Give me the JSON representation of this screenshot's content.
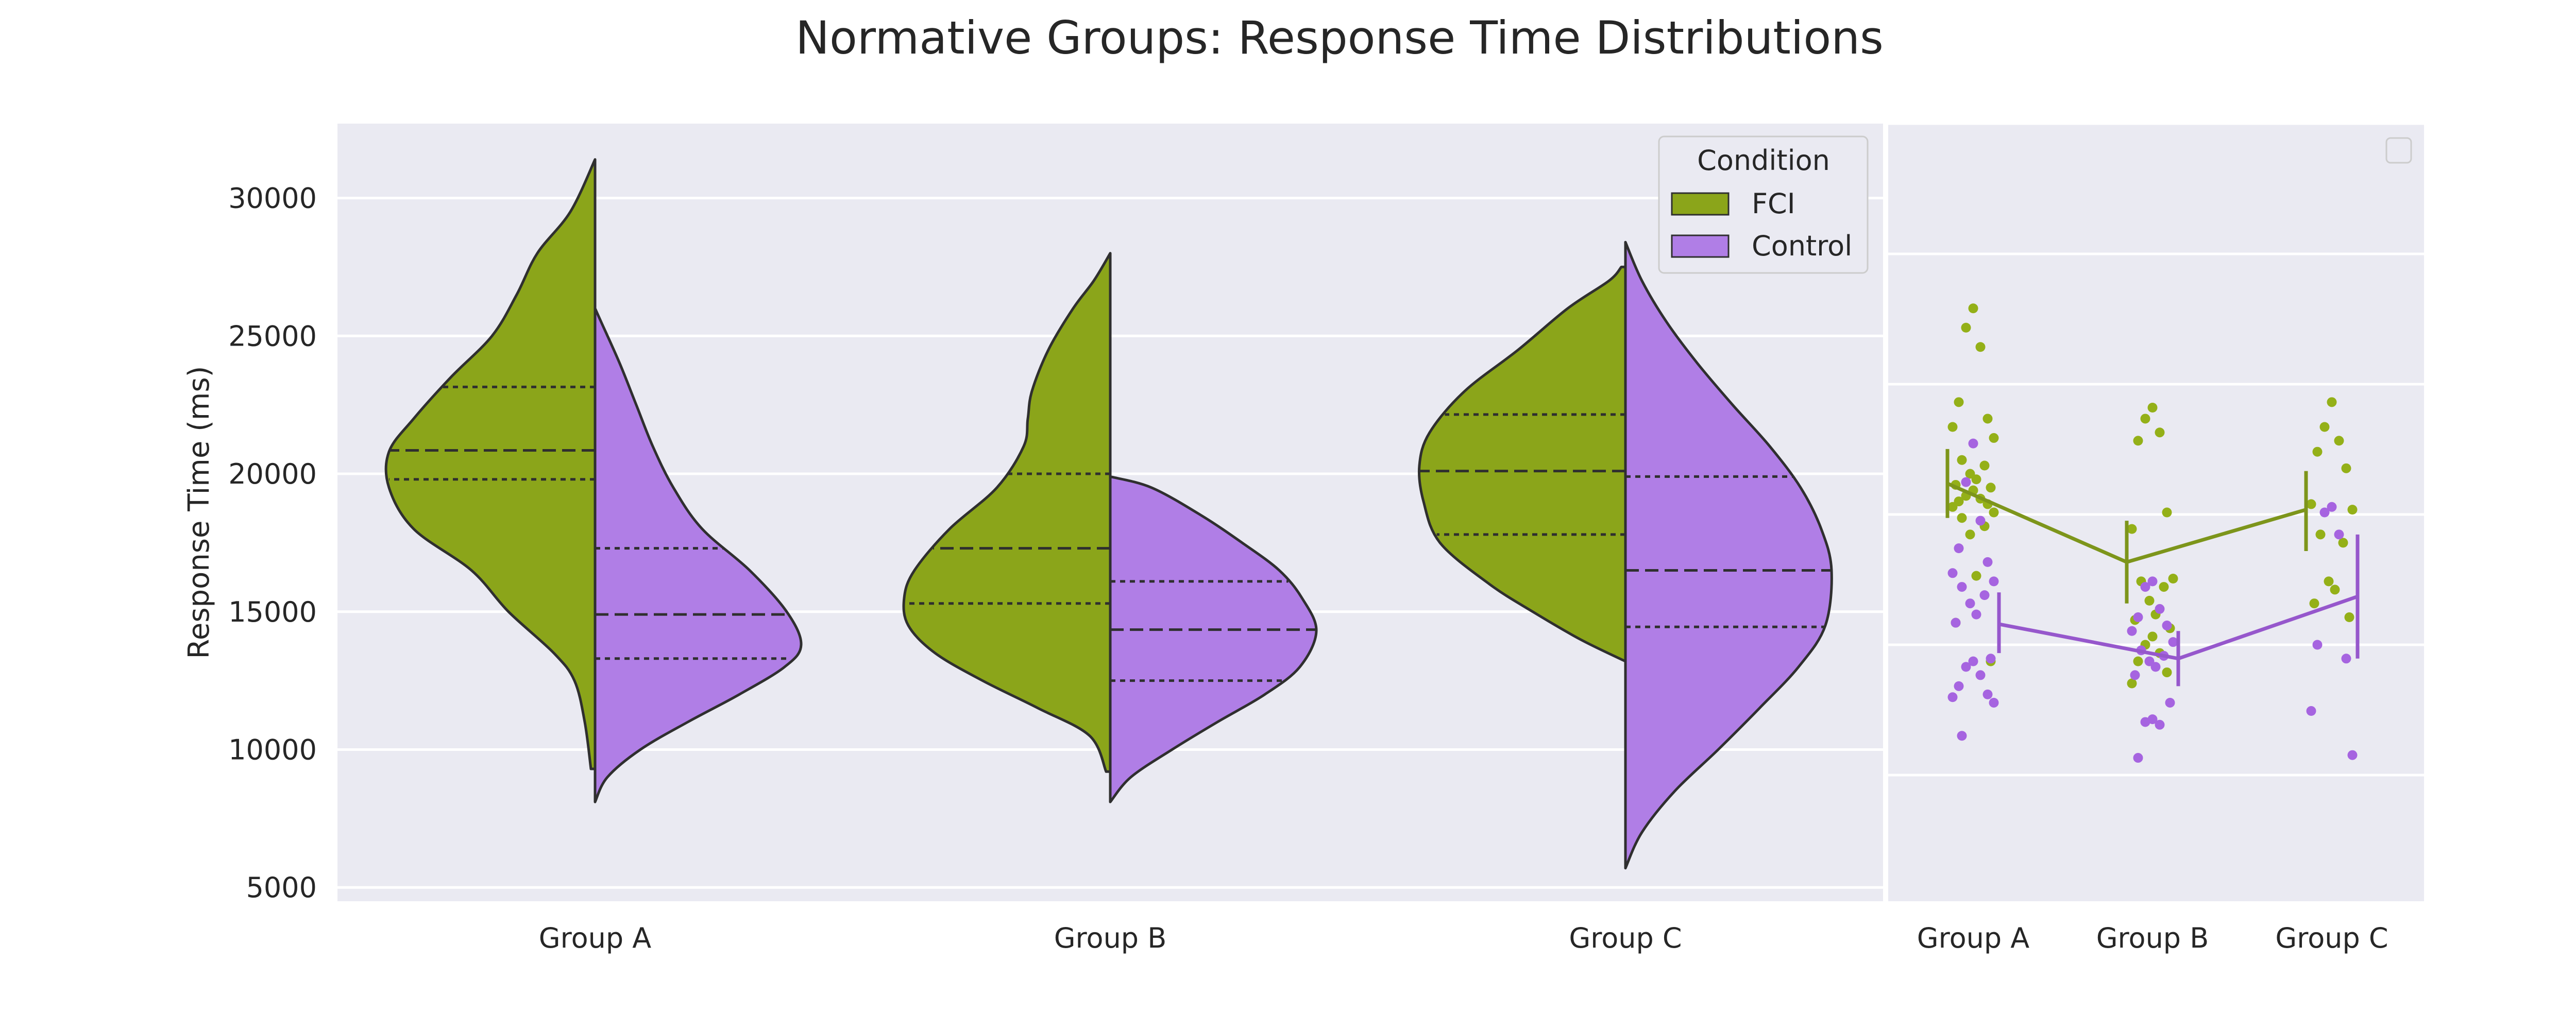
{
  "colors": {
    "fci": "#8ba51a",
    "control": "#b07ee6",
    "fci_point": "#94b018",
    "control_point": "#a664e0",
    "fci_line": "#7d951b",
    "control_line": "#9657cc",
    "panel_bg": "#eaeaf2",
    "grid": "#ffffff",
    "edge": "#2f2f2f"
  },
  "chart_data": [
    {
      "type": "violin",
      "title": "Normative Groups: Response Time Distributions",
      "xlabel": "",
      "ylabel": "Response Time (ms)",
      "categories": [
        "Group A",
        "Group B",
        "Group C"
      ],
      "ylim": [
        4500,
        32700
      ],
      "yticks": [
        5000,
        10000,
        15000,
        20000,
        25000,
        30000
      ],
      "grid": true,
      "legend": {
        "title": "Condition",
        "placement": "top-right",
        "entries": [
          "FCI",
          "Control"
        ]
      },
      "series": [
        {
          "name": "FCI",
          "side": "left",
          "groups": [
            {
              "ymin": 9300,
              "ymax": 31400,
              "q1": 19800,
              "median": 20850,
              "q3": 23150,
              "profile": [
                [
                  9300,
                  0.02
                ],
                [
                  11000,
                  0.05
                ],
                [
                  12500,
                  0.1
                ],
                [
                  13500,
                  0.2
                ],
                [
                  15000,
                  0.42
                ],
                [
                  16500,
                  0.6
                ],
                [
                  18000,
                  0.88
                ],
                [
                  19500,
                  1.0
                ],
                [
                  20800,
                  1.0
                ],
                [
                  22000,
                  0.88
                ],
                [
                  23500,
                  0.7
                ],
                [
                  25000,
                  0.5
                ],
                [
                  26500,
                  0.38
                ],
                [
                  28000,
                  0.28
                ],
                [
                  29500,
                  0.12
                ],
                [
                  31400,
                  0.0
                ]
              ]
            },
            {
              "ymin": 9200,
              "ymax": 28000,
              "q1": 15300,
              "median": 17300,
              "q3": 20000,
              "profile": [
                [
                  9200,
                  0.02
                ],
                [
                  10500,
                  0.1
                ],
                [
                  11500,
                  0.35
                ],
                [
                  12500,
                  0.62
                ],
                [
                  13500,
                  0.85
                ],
                [
                  14500,
                  0.98
                ],
                [
                  15500,
                  1.0
                ],
                [
                  16500,
                  0.95
                ],
                [
                  18000,
                  0.78
                ],
                [
                  19500,
                  0.55
                ],
                [
                  21000,
                  0.42
                ],
                [
                  22000,
                  0.4
                ],
                [
                  23000,
                  0.38
                ],
                [
                  24500,
                  0.3
                ],
                [
                  26000,
                  0.18
                ],
                [
                  27000,
                  0.08
                ],
                [
                  28000,
                  0.0
                ]
              ]
            },
            {
              "ymin": 13200,
              "ymax": 27500,
              "q1": 17800,
              "median": 20100,
              "q3": 22150,
              "profile": [
                [
                  13200,
                  0.0
                ],
                [
                  14000,
                  0.22
                ],
                [
                  15000,
                  0.45
                ],
                [
                  16000,
                  0.66
                ],
                [
                  17500,
                  0.9
                ],
                [
                  19000,
                  0.98
                ],
                [
                  20300,
                  1.0
                ],
                [
                  21500,
                  0.95
                ],
                [
                  23000,
                  0.78
                ],
                [
                  24500,
                  0.52
                ],
                [
                  26000,
                  0.28
                ],
                [
                  27000,
                  0.08
                ],
                [
                  27500,
                  0.02
                ]
              ]
            }
          ]
        },
        {
          "name": "Control",
          "side": "right",
          "groups": [
            {
              "ymin": 8100,
              "ymax": 26000,
              "q1": 13300,
              "median": 14900,
              "q3": 17300,
              "profile": [
                [
                  8100,
                  0.0
                ],
                [
                  9000,
                  0.06
                ],
                [
                  10000,
                  0.22
                ],
                [
                  11000,
                  0.45
                ],
                [
                  12000,
                  0.7
                ],
                [
                  13000,
                  0.92
                ],
                [
                  13800,
                  1.0
                ],
                [
                  15000,
                  0.93
                ],
                [
                  16500,
                  0.75
                ],
                [
                  18000,
                  0.52
                ],
                [
                  19500,
                  0.38
                ],
                [
                  21000,
                  0.28
                ],
                [
                  22500,
                  0.2
                ],
                [
                  24000,
                  0.12
                ],
                [
                  25500,
                  0.03
                ],
                [
                  26000,
                  0.0
                ]
              ]
            },
            {
              "ymin": 8100,
              "ymax": 19900,
              "q1": 12500,
              "median": 14350,
              "q3": 16100,
              "profile": [
                [
                  8100,
                  0.0
                ],
                [
                  9000,
                  0.1
                ],
                [
                  10000,
                  0.3
                ],
                [
                  11000,
                  0.52
                ],
                [
                  12000,
                  0.75
                ],
                [
                  13000,
                  0.92
                ],
                [
                  14300,
                  1.0
                ],
                [
                  15500,
                  0.93
                ],
                [
                  16500,
                  0.82
                ],
                [
                  17500,
                  0.64
                ],
                [
                  18500,
                  0.44
                ],
                [
                  19500,
                  0.2
                ],
                [
                  19900,
                  0.0
                ]
              ]
            },
            {
              "ymin": 5700,
              "ymax": 28400,
              "q1": 14450,
              "median": 16500,
              "q3": 19900,
              "profile": [
                [
                  5700,
                  0.0
                ],
                [
                  7000,
                  0.08
                ],
                [
                  8500,
                  0.24
                ],
                [
                  10000,
                  0.45
                ],
                [
                  11500,
                  0.65
                ],
                [
                  13000,
                  0.84
                ],
                [
                  14500,
                  0.97
                ],
                [
                  16500,
                  1.0
                ],
                [
                  18000,
                  0.95
                ],
                [
                  19500,
                  0.85
                ],
                [
                  21000,
                  0.7
                ],
                [
                  22500,
                  0.52
                ],
                [
                  24000,
                  0.35
                ],
                [
                  25500,
                  0.2
                ],
                [
                  27000,
                  0.08
                ],
                [
                  28400,
                  0.0
                ]
              ]
            }
          ]
        }
      ]
    },
    {
      "type": "strip_point",
      "categories": [
        "Group A",
        "Group B",
        "Group C"
      ],
      "ylim": [
        4500,
        32700
      ],
      "grid": true,
      "legend": {
        "placement": "top-right",
        "entries": []
      },
      "series": [
        {
          "name": "FCI",
          "points": [
            [
              26000,
              25300,
              24600,
              22600,
              22000,
              21700,
              21300,
              20500,
              20300,
              20000,
              19800,
              19600,
              19500,
              19400,
              19200,
              19100,
              19000,
              18900,
              18800,
              18600,
              18400,
              18100,
              17800,
              16300,
              14600,
              13200
            ],
            [
              22400,
              22000,
              21500,
              21200,
              18600,
              18000,
              16200,
              16100,
              15900,
              15400,
              14900,
              14700,
              14400,
              14100,
              13800,
              13500,
              13200,
              12800,
              12400
            ],
            [
              22600,
              21700,
              21200,
              20800,
              20200,
              18900,
              18700,
              17800,
              17500,
              16100,
              15800,
              15300,
              14800
            ]
          ],
          "mean": [
            19650,
            16800,
            18700
          ],
          "ci": [
            [
              18400,
              20900
            ],
            [
              15300,
              18300
            ],
            [
              17200,
              20100
            ]
          ]
        },
        {
          "name": "Control",
          "points": [
            [
              21100,
              19700,
              18300,
              17300,
              16800,
              16400,
              16100,
              15900,
              15600,
              15300,
              14900,
              14600,
              13300,
              13200,
              13000,
              12700,
              12300,
              12000,
              11900,
              11700,
              10500
            ],
            [
              16100,
              15900,
              15100,
              14800,
              14500,
              14300,
              13900,
              13600,
              13400,
              13200,
              13000,
              12700,
              11700,
              11100,
              11000,
              10900,
              9700
            ],
            [
              18800,
              18600,
              17800,
              13800,
              13300,
              11400,
              9800
            ]
          ],
          "mean": [
            14550,
            13300,
            15550
          ],
          "ci": [
            [
              13500,
              15700
            ],
            [
              12300,
              14300
            ],
            [
              13300,
              17800
            ]
          ]
        }
      ]
    }
  ]
}
